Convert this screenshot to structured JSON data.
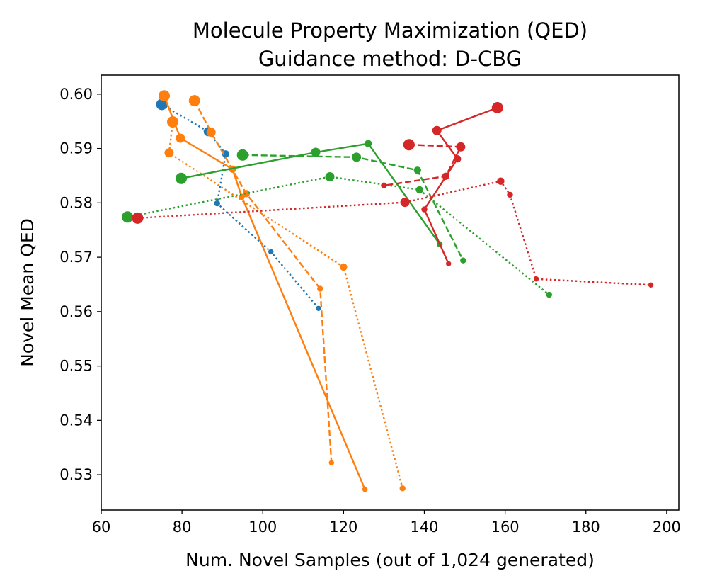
{
  "chart_data": {
    "type": "line",
    "title": "Molecule Property Maximization (QED)",
    "subtitle": "Guidance method: D-CBG",
    "xlabel": "Num. Novel Samples (out of 1,024 generated)",
    "ylabel": "Novel Mean QED",
    "xlim": [
      60,
      203
    ],
    "ylim": [
      0.5235,
      0.6035
    ],
    "xticks": [
      60,
      80,
      100,
      120,
      140,
      160,
      180,
      200
    ],
    "xtick_labels": [
      "60",
      "80",
      "100",
      "120",
      "140",
      "160",
      "180",
      "200"
    ],
    "yticks": [
      0.53,
      0.54,
      0.55,
      0.56,
      0.57,
      0.58,
      0.59,
      0.6
    ],
    "ytick_labels": [
      "0.53",
      "0.54",
      "0.55",
      "0.56",
      "0.57",
      "0.58",
      "0.59",
      "0.60"
    ],
    "series": [
      {
        "name": "blue-dotted",
        "color": "#1f77b4",
        "style": "dotted",
        "x": [
          75.0,
          86.5,
          90.8,
          88.7,
          102.0,
          113.8
        ],
        "y": [
          0.5981,
          0.5931,
          0.589,
          0.5799,
          0.571,
          0.5606
        ]
      },
      {
        "name": "orange-solid",
        "color": "#ff7f0e",
        "style": "solid",
        "x": [
          75.6,
          79.6,
          92.5,
          94.8,
          125.3
        ],
        "y": [
          0.5997,
          0.5919,
          0.5862,
          0.5811,
          0.5273
        ]
      },
      {
        "name": "orange-dashed",
        "color": "#ff7f0e",
        "style": "dashed",
        "x": [
          83.1,
          87.2,
          95.9,
          114.2,
          117.0
        ],
        "y": [
          0.5988,
          0.593,
          0.5817,
          0.5642,
          0.5322
        ]
      },
      {
        "name": "orange-dotted",
        "color": "#ff7f0e",
        "style": "dotted",
        "x": [
          77.7,
          76.8,
          120.0,
          134.6
        ],
        "y": [
          0.5949,
          0.5892,
          0.5682,
          0.5275
        ]
      },
      {
        "name": "green-solid",
        "color": "#2ca02c",
        "style": "solid",
        "x": [
          79.8,
          113.1,
          126.1,
          143.8
        ],
        "y": [
          0.5845,
          0.5893,
          0.5909,
          0.5724
        ]
      },
      {
        "name": "green-dashed",
        "color": "#2ca02c",
        "style": "dashed",
        "x": [
          95.0,
          123.2,
          138.3,
          149.6
        ],
        "y": [
          0.5888,
          0.5884,
          0.586,
          0.5694
        ]
      },
      {
        "name": "green-dotted",
        "color": "#2ca02c",
        "style": "dotted",
        "x": [
          66.5,
          116.6,
          138.8,
          170.9
        ],
        "y": [
          0.5774,
          0.5848,
          0.5824,
          0.5631
        ]
      },
      {
        "name": "red-solid",
        "color": "#d62728",
        "style": "solid",
        "x": [
          158.1,
          143.1,
          148.2,
          140.0,
          146.0
        ],
        "y": [
          0.5975,
          0.5933,
          0.5881,
          0.5788,
          0.5688
        ]
      },
      {
        "name": "red-dashed",
        "color": "#d62728",
        "style": "dashed",
        "x": [
          136.2,
          149.0,
          145.3,
          130.0
        ],
        "y": [
          0.5907,
          0.5903,
          0.5849,
          0.5832
        ]
      },
      {
        "name": "red-dotted",
        "color": "#d62728",
        "style": "dotted",
        "x": [
          69.0,
          135.2,
          158.9,
          161.2,
          167.7,
          196.1
        ],
        "y": [
          0.5772,
          0.5801,
          0.584,
          0.5815,
          0.566,
          0.5649
        ]
      }
    ]
  }
}
